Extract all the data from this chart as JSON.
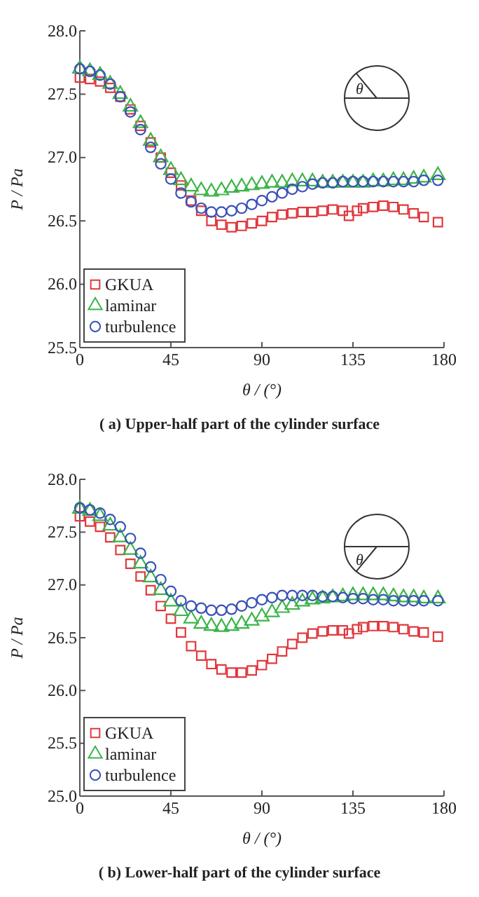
{
  "chart_data": [
    {
      "type": "scatter",
      "title": "( a)  Upper-half part of the cylinder surface",
      "xlabel": "θ / (°)",
      "ylabel": "P / Pa",
      "annotations": [
        "θ"
      ],
      "xlim": [
        0,
        180
      ],
      "ylim": [
        25.5,
        28.0
      ],
      "xticks": [
        0,
        45,
        90,
        135,
        180
      ],
      "yticks": [
        {
          "value": 25.5,
          "label": "25.5"
        },
        {
          "value": 26.0,
          "label": "26.0"
        },
        {
          "value": 26.5,
          "label": "26.5"
        },
        {
          "value": 27.0,
          "label": "27.0"
        },
        {
          "value": 27.5,
          "label": "27.5"
        },
        {
          "value": 28.0,
          "label": "28.0"
        }
      ],
      "legend": "bottom left",
      "grid": false,
      "series": [
        {
          "name": "GKUA",
          "color": "#e0393e",
          "marker": "square",
          "x": [
            0,
            5,
            10,
            15,
            20,
            25,
            30,
            35,
            40,
            45,
            50,
            55,
            60,
            65,
            70,
            75,
            80,
            85,
            90,
            95,
            100,
            105,
            110,
            115,
            120,
            125,
            130,
            133,
            137,
            140,
            145,
            150,
            155,
            160,
            165,
            170,
            177
          ],
          "values": [
            27.63,
            27.62,
            27.6,
            27.55,
            27.48,
            27.38,
            27.25,
            27.12,
            27.0,
            26.88,
            26.78,
            26.66,
            26.58,
            26.5,
            26.47,
            26.45,
            26.46,
            26.48,
            26.5,
            26.53,
            26.55,
            26.56,
            26.57,
            26.57,
            26.58,
            26.59,
            26.58,
            26.54,
            26.58,
            26.6,
            26.61,
            26.62,
            26.61,
            26.59,
            26.56,
            26.53,
            26.49
          ]
        },
        {
          "name": "laminar",
          "color": "#3cb44a",
          "marker": "triangle",
          "x": [
            0,
            5,
            10,
            15,
            20,
            25,
            30,
            35,
            40,
            45,
            50,
            55,
            60,
            65,
            70,
            75,
            80,
            85,
            90,
            95,
            100,
            105,
            110,
            115,
            120,
            125,
            130,
            135,
            140,
            145,
            150,
            155,
            160,
            165,
            170,
            177
          ],
          "values": [
            27.7,
            27.68,
            27.65,
            27.58,
            27.5,
            27.4,
            27.27,
            27.13,
            27.0,
            26.9,
            26.82,
            26.77,
            26.74,
            26.73,
            26.74,
            26.76,
            26.77,
            26.78,
            26.79,
            26.8,
            26.8,
            26.81,
            26.81,
            26.81,
            26.8,
            26.8,
            26.8,
            26.8,
            26.8,
            26.81,
            26.81,
            26.82,
            26.82,
            26.83,
            26.84,
            26.86
          ]
        },
        {
          "name": "turbulence",
          "color": "#3a52b8",
          "marker": "circle",
          "x": [
            0,
            5,
            10,
            15,
            20,
            25,
            30,
            35,
            40,
            45,
            50,
            55,
            60,
            65,
            70,
            75,
            80,
            85,
            90,
            95,
            100,
            105,
            110,
            115,
            120,
            125,
            130,
            135,
            140,
            145,
            150,
            155,
            160,
            165,
            170,
            177
          ],
          "values": [
            27.7,
            27.68,
            27.65,
            27.58,
            27.48,
            27.36,
            27.22,
            27.08,
            26.95,
            26.83,
            26.72,
            26.65,
            26.6,
            26.57,
            26.57,
            26.58,
            26.6,
            26.63,
            26.66,
            26.69,
            26.72,
            26.75,
            26.77,
            26.79,
            26.8,
            26.8,
            26.81,
            26.81,
            26.81,
            26.81,
            26.81,
            26.81,
            26.81,
            26.81,
            26.82,
            26.82
          ]
        }
      ]
    },
    {
      "type": "scatter",
      "title": "( b)  Lower-half part of the cylinder surface",
      "xlabel": "θ / (°)",
      "ylabel": "P / Pa",
      "annotations": [
        "θ"
      ],
      "xlim": [
        0,
        180
      ],
      "ylim": [
        25.0,
        28.0
      ],
      "xticks": [
        0,
        45,
        90,
        135,
        180
      ],
      "yticks": [
        {
          "value": 25.0,
          "label": "25.0"
        },
        {
          "value": 25.5,
          "label": "25.5"
        },
        {
          "value": 26.0,
          "label": "26.0"
        },
        {
          "value": 26.5,
          "label": "26.5"
        },
        {
          "value": 27.0,
          "label": "27.0"
        },
        {
          "value": 27.5,
          "label": "27.5"
        },
        {
          "value": 28.0,
          "label": "28.0"
        }
      ],
      "legend": "bottom left",
      "grid": false,
      "series": [
        {
          "name": "GKUA",
          "color": "#e0393e",
          "marker": "square",
          "x": [
            0,
            5,
            10,
            15,
            20,
            25,
            30,
            35,
            40,
            45,
            50,
            55,
            60,
            65,
            70,
            75,
            80,
            85,
            90,
            95,
            100,
            105,
            110,
            115,
            120,
            125,
            130,
            133,
            137,
            140,
            145,
            150,
            155,
            160,
            165,
            170,
            177
          ],
          "values": [
            27.65,
            27.6,
            27.55,
            27.45,
            27.33,
            27.2,
            27.08,
            26.95,
            26.8,
            26.68,
            26.55,
            26.42,
            26.33,
            26.25,
            26.2,
            26.17,
            26.17,
            26.19,
            26.24,
            26.3,
            26.37,
            26.44,
            26.5,
            26.54,
            26.56,
            26.57,
            26.57,
            26.54,
            26.58,
            26.6,
            26.61,
            26.61,
            26.6,
            26.58,
            26.56,
            26.55,
            26.51
          ]
        },
        {
          "name": "laminar",
          "color": "#3cb44a",
          "marker": "triangle",
          "x": [
            0,
            5,
            10,
            15,
            20,
            25,
            30,
            35,
            40,
            45,
            50,
            55,
            60,
            65,
            70,
            75,
            80,
            85,
            90,
            95,
            100,
            105,
            110,
            115,
            120,
            125,
            130,
            135,
            140,
            145,
            150,
            155,
            160,
            165,
            170,
            177
          ],
          "values": [
            27.72,
            27.7,
            27.65,
            27.56,
            27.45,
            27.33,
            27.2,
            27.07,
            26.95,
            26.84,
            26.75,
            26.68,
            26.63,
            26.61,
            26.6,
            26.61,
            26.63,
            26.66,
            26.7,
            26.74,
            26.78,
            26.81,
            26.84,
            26.86,
            26.87,
            26.88,
            26.89,
            26.9,
            26.9,
            26.9,
            26.9,
            26.89,
            26.88,
            26.88,
            26.87,
            26.87
          ]
        },
        {
          "name": "turbulence",
          "color": "#3a52b8",
          "marker": "circle",
          "x": [
            0,
            5,
            10,
            15,
            20,
            25,
            30,
            35,
            40,
            45,
            50,
            55,
            60,
            65,
            70,
            75,
            80,
            85,
            90,
            95,
            100,
            105,
            110,
            115,
            120,
            125,
            130,
            135,
            140,
            145,
            150,
            155,
            160,
            165,
            170,
            177
          ],
          "values": [
            27.73,
            27.71,
            27.68,
            27.62,
            27.55,
            27.44,
            27.3,
            27.17,
            27.05,
            26.94,
            26.85,
            26.8,
            26.78,
            26.76,
            26.76,
            26.77,
            26.8,
            26.83,
            26.86,
            26.88,
            26.9,
            26.9,
            26.9,
            26.9,
            26.89,
            26.89,
            26.88,
            26.87,
            26.87,
            26.86,
            26.86,
            26.85,
            26.85,
            26.85,
            26.85,
            26.85
          ]
        }
      ]
    }
  ]
}
